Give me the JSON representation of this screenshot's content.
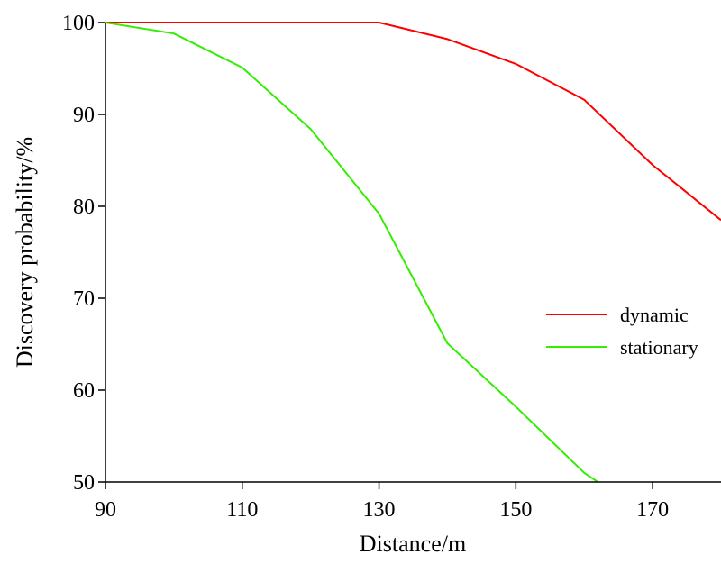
{
  "chart_data": {
    "type": "line",
    "xlabel": "Distance/m",
    "ylabel": "Discovery probability/%",
    "xlim": [
      90,
      180
    ],
    "ylim": [
      50,
      100
    ],
    "xticks": [
      90,
      110,
      130,
      150,
      170
    ],
    "yticks": [
      50,
      60,
      70,
      80,
      90,
      100
    ],
    "grid": false,
    "legend_position": "right",
    "series": [
      {
        "name": "dynamic",
        "color": "#ff0000",
        "x": [
          90,
          100,
          110,
          120,
          130,
          140,
          150,
          160,
          170,
          180
        ],
        "y": [
          100,
          100,
          100,
          100,
          100,
          98.2,
          95.5,
          91.6,
          84.5,
          78.5
        ]
      },
      {
        "name": "stationary",
        "color": "#33ee00",
        "x": [
          90,
          100,
          110,
          120,
          130,
          140,
          150,
          160,
          162
        ],
        "y": [
          100,
          98.8,
          95.1,
          88.4,
          79.2,
          65.1,
          58.2,
          51.0,
          50
        ]
      }
    ]
  }
}
